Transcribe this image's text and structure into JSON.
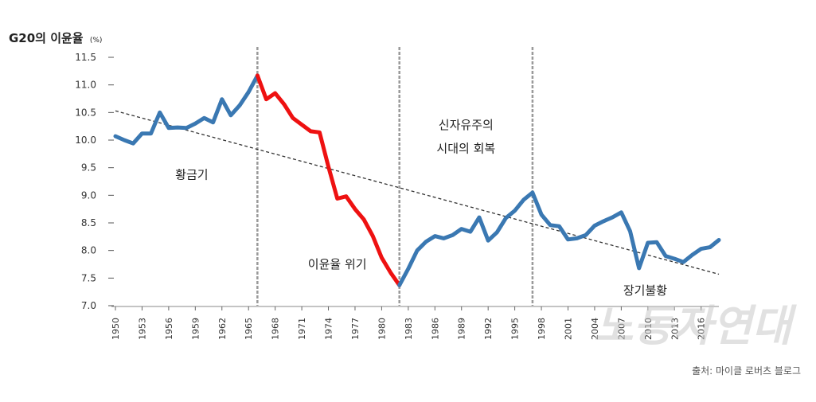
{
  "chart_data": {
    "type": "line",
    "title": "G20의 이윤율",
    "title_unit": "(%)",
    "ylim": [
      7.0,
      11.5
    ],
    "y_ticks": [
      "11.5",
      "11.0",
      "10.5",
      "10.0",
      "9.5",
      "9.0",
      "8.5",
      "8.0",
      "7.5",
      "7.0"
    ],
    "y_tick_values": [
      11.5,
      11.0,
      10.5,
      10.0,
      9.5,
      9.0,
      8.5,
      8.0,
      7.5,
      7.0
    ],
    "xlim": [
      1950,
      2018
    ],
    "x_ticks": [
      "1950",
      "1953",
      "1956",
      "1959",
      "1962",
      "1965",
      "1968",
      "1971",
      "1974",
      "1977",
      "1980",
      "1983",
      "1986",
      "1989",
      "1992",
      "1995",
      "1998",
      "2001",
      "2004",
      "2007",
      "2010",
      "2013",
      "2016"
    ],
    "x_tick_values": [
      1950,
      1953,
      1956,
      1959,
      1962,
      1965,
      1968,
      1971,
      1974,
      1977,
      1980,
      1983,
      1986,
      1989,
      1992,
      1995,
      1998,
      2001,
      2004,
      2007,
      2010,
      2013,
      2016
    ],
    "grid": false,
    "series": [
      {
        "name": "",
        "color": "#3a78b2",
        "x": [
          1950,
          1951,
          1952,
          1953,
          1954,
          1955,
          1956,
          1957,
          1958,
          1959,
          1960,
          1961,
          1962,
          1963,
          1964,
          1965,
          1966
        ],
        "values": [
          10.07,
          10.0,
          9.94,
          10.12,
          10.12,
          10.5,
          10.22,
          10.23,
          10.22,
          10.3,
          10.4,
          10.32,
          10.74,
          10.45,
          10.63,
          10.87,
          11.17
        ]
      },
      {
        "name": "",
        "color": "#ee1111",
        "x": [
          1966,
          1967,
          1968,
          1969,
          1970,
          1971,
          1972,
          1973,
          1974,
          1975,
          1976,
          1977,
          1978,
          1979,
          1980,
          1981,
          1982
        ],
        "values": [
          11.17,
          10.74,
          10.85,
          10.65,
          10.4,
          10.28,
          10.16,
          10.14,
          9.52,
          8.94,
          8.98,
          8.75,
          8.56,
          8.26,
          7.87,
          7.6,
          7.37
        ]
      },
      {
        "name": "",
        "color": "#3a78b2",
        "x": [
          1982,
          1983,
          1984,
          1985,
          1986,
          1987,
          1988,
          1989,
          1990,
          1991,
          1992,
          1993,
          1994,
          1995,
          1996,
          1997,
          1998,
          1999,
          2000,
          2001,
          2002,
          2003,
          2004,
          2005,
          2006,
          2007,
          2008,
          2009,
          2010,
          2011,
          2012,
          2013,
          2014,
          2015,
          2016,
          2017,
          2018
        ],
        "values": [
          7.37,
          7.67,
          8.0,
          8.16,
          8.26,
          8.22,
          8.28,
          8.39,
          8.34,
          8.6,
          8.18,
          8.33,
          8.59,
          8.72,
          8.92,
          9.05,
          8.65,
          8.46,
          8.44,
          8.2,
          8.22,
          8.28,
          8.45,
          8.53,
          8.6,
          8.69,
          8.35,
          7.68,
          8.14,
          8.15,
          7.9,
          7.85,
          7.79,
          7.92,
          8.03,
          8.06,
          8.19
        ]
      }
    ],
    "trendline": {
      "style": "dashed",
      "color": "#333333",
      "x": [
        1950,
        2018
      ],
      "values": [
        10.53,
        7.57
      ]
    },
    "dividers_x": [
      1966,
      1982,
      1997
    ],
    "annotations": [
      {
        "text": "황금기",
        "x": 1958.6,
        "y": 9.3
      },
      {
        "text": "이윤율 위기",
        "x": 1975.0,
        "y": 7.68
      },
      {
        "text": "신자유주의",
        "x": 1989.5,
        "y": 10.2
      },
      {
        "text": "시대의 회복",
        "x": 1989.5,
        "y": 9.78
      },
      {
        "text": "장기불황",
        "x": 2009.7,
        "y": 7.2
      }
    ],
    "source": "출처: 마이클 로버츠 블로그",
    "watermark": "노동자연대"
  }
}
